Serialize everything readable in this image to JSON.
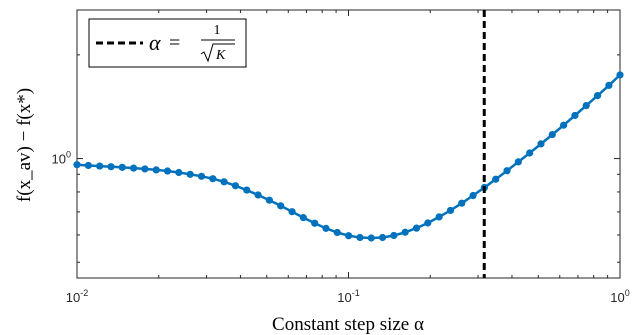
{
  "chart_data": {
    "type": "line",
    "xscale": "log",
    "yscale": "log",
    "xlim": [
      0.01,
      1
    ],
    "ylim": [
      0.45,
      2.7
    ],
    "x_ticks": [
      {
        "base": "10",
        "exp": "-2",
        "value": 0.01
      },
      {
        "base": "10",
        "exp": "-1",
        "value": 0.1
      },
      {
        "base": "10",
        "exp": "0",
        "value": 1
      }
    ],
    "y_ticks": [
      {
        "base": "10",
        "exp": "0",
        "value": 1
      }
    ],
    "xlabel": "Constant step size α",
    "ylabel": "f(x_av) − f(x*)",
    "color": "#0072BD",
    "series": [
      {
        "x": [
          0.01,
          0.01101,
          0.01212,
          0.01334,
          0.01468,
          0.01616,
          0.01779,
          0.01958,
          0.02155,
          0.02372,
          0.02611,
          0.02874,
          0.03164,
          0.03482,
          0.03833,
          0.04219,
          0.04644,
          0.05112,
          0.05627,
          0.06194,
          0.06818,
          0.07505,
          0.08261,
          0.09093,
          0.1001,
          0.1102,
          0.1213,
          0.1335,
          0.1469,
          0.1617,
          0.178,
          0.1959,
          0.2157,
          0.2374,
          0.2613,
          0.2876,
          0.3166,
          0.3485,
          0.3836,
          0.4222,
          0.4648,
          0.5116,
          0.5631,
          0.6199,
          0.6823,
          0.751,
          0.8267,
          0.91,
          1.0
        ],
        "y": [
          0.96,
          0.955,
          0.951,
          0.947,
          0.943,
          0.938,
          0.933,
          0.927,
          0.92,
          0.911,
          0.9,
          0.888,
          0.874,
          0.856,
          0.834,
          0.81,
          0.784,
          0.757,
          0.729,
          0.701,
          0.674,
          0.649,
          0.627,
          0.61,
          0.597,
          0.59,
          0.588,
          0.59,
          0.598,
          0.611,
          0.628,
          0.65,
          0.677,
          0.707,
          0.742,
          0.781,
          0.824,
          0.871,
          0.922,
          0.978,
          1.038,
          1.103,
          1.174,
          1.25,
          1.334,
          1.425,
          1.523,
          1.631,
          1.749
        ]
      }
    ],
    "vline": {
      "x": 0.3162,
      "color": "#000000",
      "style": "dashed"
    },
    "legend": {
      "position": "top-left",
      "symbol": "α",
      "numerator": "1",
      "radicand": "K"
    }
  }
}
